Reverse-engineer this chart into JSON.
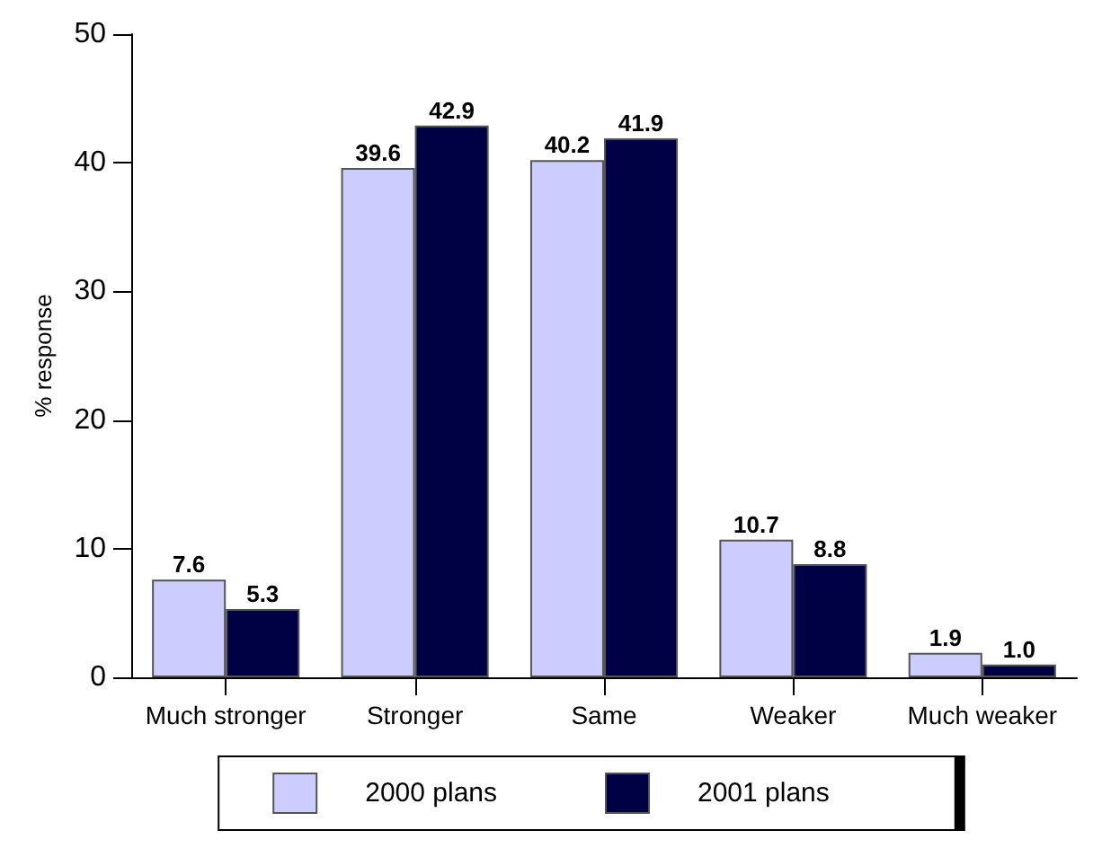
{
  "chart_data": {
    "type": "bar",
    "ylabel": "% response",
    "categories": [
      "Much stronger",
      "Stronger",
      "Same",
      "Weaker",
      "Much weaker"
    ],
    "series": [
      {
        "name": "2000 plans",
        "color": "#ccccff",
        "values": [
          7.6,
          39.6,
          40.2,
          10.7,
          1.9
        ],
        "value_labels": [
          "7.6",
          "39.6",
          "40.2",
          "10.7",
          "1.9"
        ]
      },
      {
        "name": "2001 plans",
        "color": "#000044",
        "values": [
          5.3,
          42.9,
          41.9,
          8.8,
          1.0
        ],
        "value_labels": [
          "5.3",
          "42.9",
          "41.9",
          "8.8",
          "1.0"
        ]
      }
    ],
    "ylim": [
      0,
      50
    ],
    "yticks": [
      0,
      10,
      20,
      30,
      40,
      50
    ],
    "grid": false,
    "legend": "bottom"
  }
}
